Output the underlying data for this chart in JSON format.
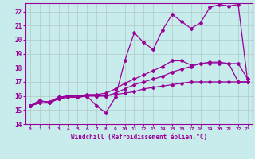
{
  "xlabel": "Windchill (Refroidissement éolien,°C)",
  "bg_color": "#c8ecec",
  "grid_color": "#b0c8c8",
  "line_color": "#990099",
  "xlim": [
    -0.5,
    23.5
  ],
  "ylim": [
    14,
    22.6
  ],
  "xticks": [
    0,
    1,
    2,
    3,
    4,
    5,
    6,
    7,
    8,
    9,
    10,
    11,
    12,
    13,
    14,
    15,
    16,
    17,
    18,
    19,
    20,
    21,
    22,
    23
  ],
  "yticks": [
    14,
    15,
    16,
    17,
    18,
    19,
    20,
    21,
    22
  ],
  "series": [
    {
      "x": [
        0,
        1,
        2,
        3,
        4,
        5,
        6,
        7,
        8,
        9,
        10,
        11,
        12,
        13,
        14,
        15,
        16,
        17,
        18,
        19,
        20,
        21,
        22,
        23
      ],
      "y": [
        15.3,
        15.7,
        15.5,
        15.9,
        16.0,
        15.9,
        16.0,
        15.3,
        14.8,
        15.9,
        18.5,
        20.5,
        19.8,
        19.3,
        20.7,
        21.8,
        21.3,
        20.8,
        21.2,
        22.3,
        22.5,
        22.4,
        22.5,
        17.0
      ]
    },
    {
      "x": [
        0,
        1,
        2,
        3,
        4,
        5,
        6,
        7,
        8,
        9,
        10,
        11,
        12,
        13,
        14,
        15,
        16,
        17,
        18,
        19,
        20,
        21,
        22,
        23
      ],
      "y": [
        15.3,
        15.5,
        15.5,
        15.8,
        16.0,
        16.0,
        16.0,
        16.0,
        16.0,
        16.2,
        16.5,
        16.8,
        17.0,
        17.2,
        17.4,
        17.7,
        17.9,
        18.1,
        18.3,
        18.4,
        18.4,
        18.3,
        18.3,
        17.2
      ]
    },
    {
      "x": [
        0,
        1,
        2,
        3,
        4,
        5,
        6,
        7,
        8,
        9,
        10,
        11,
        12,
        13,
        14,
        15,
        16,
        17,
        18,
        19,
        20,
        21,
        22,
        23
      ],
      "y": [
        15.3,
        15.5,
        15.5,
        15.8,
        15.9,
        15.9,
        16.0,
        16.0,
        16.0,
        16.1,
        16.2,
        16.3,
        16.5,
        16.6,
        16.7,
        16.8,
        16.9,
        17.0,
        17.0,
        17.0,
        17.0,
        17.0,
        17.0,
        17.0
      ]
    },
    {
      "x": [
        0,
        1,
        2,
        3,
        4,
        5,
        6,
        7,
        8,
        9,
        10,
        11,
        12,
        13,
        14,
        15,
        16,
        17,
        18,
        19,
        20,
        21,
        22,
        23
      ],
      "y": [
        15.3,
        15.6,
        15.6,
        15.9,
        16.0,
        16.0,
        16.1,
        16.1,
        16.2,
        16.5,
        16.9,
        17.2,
        17.5,
        17.8,
        18.1,
        18.5,
        18.5,
        18.2,
        18.3,
        18.3,
        18.3,
        18.3,
        17.0,
        17.0
      ]
    }
  ]
}
